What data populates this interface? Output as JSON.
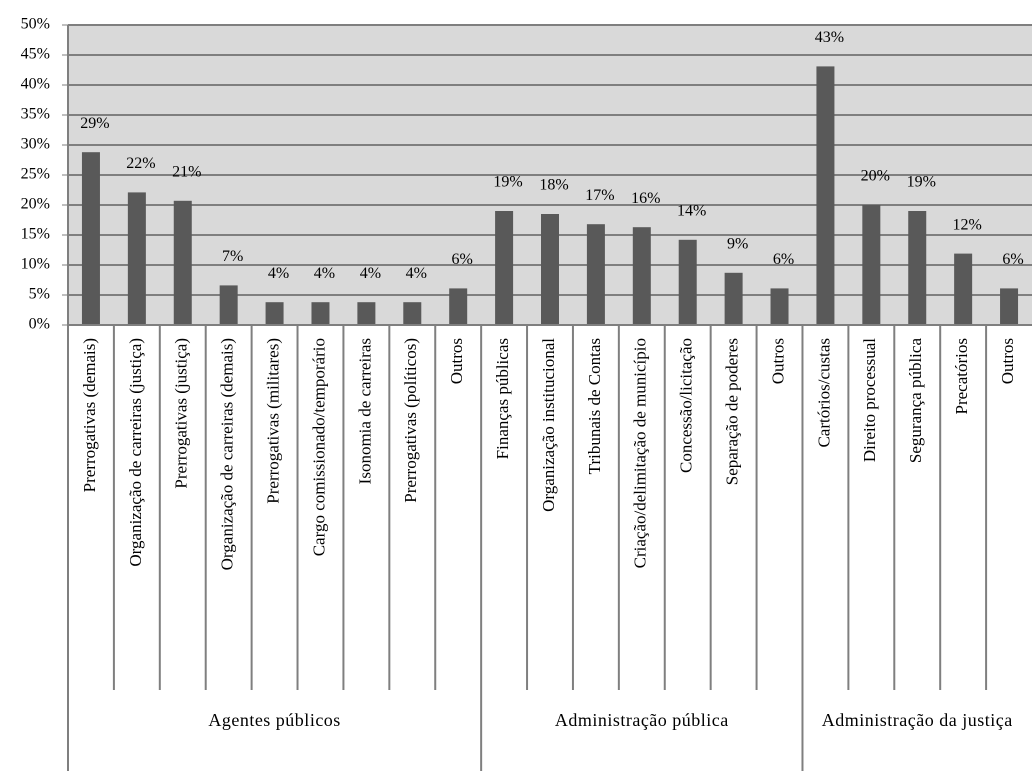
{
  "chart_data": {
    "type": "bar",
    "color": "#595959",
    "background": "#d9d9d9",
    "grid": true,
    "ylim": [
      0,
      50
    ],
    "yticks": [
      {
        "value": 0,
        "label": "0%"
      },
      {
        "value": 5,
        "label": "5%"
      },
      {
        "value": 10,
        "label": "10%"
      },
      {
        "value": 15,
        "label": "15%"
      },
      {
        "value": 20,
        "label": "20%"
      },
      {
        "value": 25,
        "label": "25%"
      },
      {
        "value": 30,
        "label": "30%"
      },
      {
        "value": 35,
        "label": "35%"
      },
      {
        "value": 40,
        "label": "40%"
      },
      {
        "value": 45,
        "label": "45%"
      },
      {
        "value": 50,
        "label": "50%"
      }
    ],
    "groups": [
      {
        "name": "Agentes públicos",
        "categories": [
          "Prerrogativas (demais)",
          "Organização de carreiras (justiça)",
          "Prerrogativas (justiça)",
          "Organização de carreiras (demais)",
          "Prerrogativas (militares)",
          "Cargo comissionado/temporário",
          "Isonomia de carreiras",
          "Prerrogativas (políticos)",
          "Outros"
        ],
        "values": [
          28.8,
          22.1,
          20.7,
          6.6,
          3.8,
          3.8,
          3.8,
          3.8,
          6.1
        ],
        "value_labels": [
          "29%",
          "22%",
          "21%",
          "7%",
          "4%",
          "4%",
          "4%",
          "4%",
          "6%"
        ]
      },
      {
        "name": "Administração pública",
        "categories": [
          "Finanças públicas",
          "Organização institucional",
          "Tribunais de Contas",
          "Criação/delimitação de município",
          "Concessão/licitação",
          "Separação de poderes",
          "Outros"
        ],
        "values": [
          19.0,
          18.5,
          16.8,
          16.3,
          14.2,
          8.7,
          6.1
        ],
        "value_labels": [
          "19%",
          "18%",
          "17%",
          "16%",
          "14%",
          "9%",
          "6%"
        ]
      },
      {
        "name": "Administração da justiça",
        "categories": [
          "Cartórios/custas",
          "Direito processual",
          "Segurança pública",
          "Precatórios",
          "Outros"
        ],
        "values": [
          43.1,
          20.0,
          19.0,
          11.9,
          6.1
        ],
        "value_labels": [
          "43%",
          "20%",
          "19%",
          "12%",
          "6%"
        ]
      }
    ]
  }
}
